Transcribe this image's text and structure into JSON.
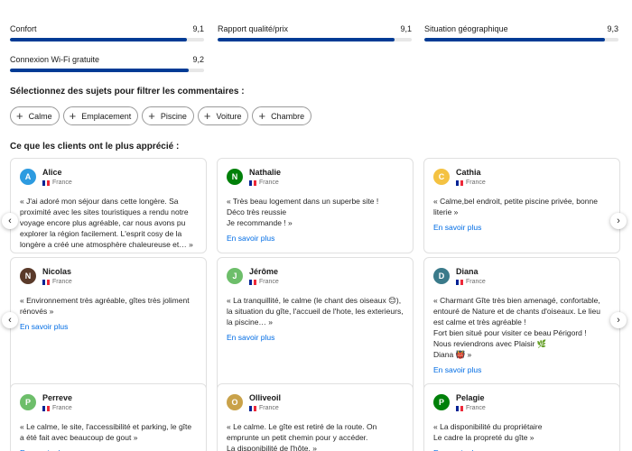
{
  "scores": [
    {
      "label": "",
      "value": "",
      "fill": 1.0
    },
    {
      "label": "",
      "value": "",
      "fill": 1.0
    },
    {
      "label": "",
      "value": "",
      "fill": 1.0
    },
    {
      "label": "Confort",
      "value": "9,1",
      "fill": 0.91
    },
    {
      "label": "Rapport qualité/prix",
      "value": "9,1",
      "fill": 0.91
    },
    {
      "label": "Situation géographique",
      "value": "9,3",
      "fill": 0.93
    },
    {
      "label": "Connexion Wi-Fi gratuite",
      "value": "9,2",
      "fill": 0.92
    }
  ],
  "filter_title": "Sélectionnez des sujets pour filtrer les commentaires :",
  "chips": [
    "Calme",
    "Emplacement",
    "Piscine",
    "Voiture",
    "Chambre"
  ],
  "reviews_title": "Ce que les clients ont le plus apprécié :",
  "more_label": "En savoir plus",
  "reviews": [
    {
      "name": "Alice",
      "initial": "A",
      "color": "#2d9be0",
      "country": "France",
      "text": "« J'ai adoré mon séjour dans cette longère. Sa proximité avec les sites touristiques a rendu notre voyage encore plus agréable, car nous avons pu explorer la région facilement. L'esprit cosy de la longère a créé une atmosphère chaleureuse et… »"
    },
    {
      "name": "Nathalie",
      "initial": "N",
      "color": "#008009",
      "country": "France",
      "text": "« Très beau logement dans un superbe site !\nDéco très reussie\nJe recommande ! »"
    },
    {
      "name": "Cathia",
      "initial": "C",
      "color": "#f4c242",
      "country": "France",
      "text": "« Calme,bel endroit, petite piscine privée, bonne literie »"
    },
    {
      "name": "Nicolas",
      "initial": "N",
      "color": "#5a3a2a",
      "country": "France",
      "text": "« Environnement très agréable, gîtes très joliment rénovés »"
    },
    {
      "name": "Jérôme",
      "initial": "J",
      "color": "#6dbe6a",
      "country": "France",
      "text": "« La tranquillité, le calme (le chant des oiseaux 😊), la situation du gîte, l'accueil de l'hote, les exterieurs, la piscine… »"
    },
    {
      "name": "Diana",
      "initial": "D",
      "color": "#3a7a8a",
      "country": "France",
      "text": "« Charmant Gîte très bien amenagé, confortable, entouré de Nature et de chants d'oiseaux. Le lieu est calme et très agréable !\nFort bien situé pour visiter ce beau Périgord !\nNous reviendrons avec Plaisir 🌿\nDiana 👹 »"
    },
    {
      "name": "Perreve",
      "initial": "P",
      "color": "#6dbe6a",
      "country": "France",
      "text": "« Le calme, le site, l'accessibilité et parking, le gîte a été fait avec beaucoup de gout »"
    },
    {
      "name": "Olliveoil",
      "initial": "O",
      "color": "#c9a24a",
      "country": "France",
      "text": "« Le calme. Le gîte est retiré de la route. On emprunte un petit chemin pour y accéder.\nLa disponibilité de l'hôte. »"
    },
    {
      "name": "Pelagie",
      "initial": "P",
      "color": "#008009",
      "country": "France",
      "text": "« La disponibilité du propriétaire\nLe cadre la propreté du gîte »"
    }
  ],
  "arrows": {
    "prev": "‹",
    "next": "›"
  }
}
